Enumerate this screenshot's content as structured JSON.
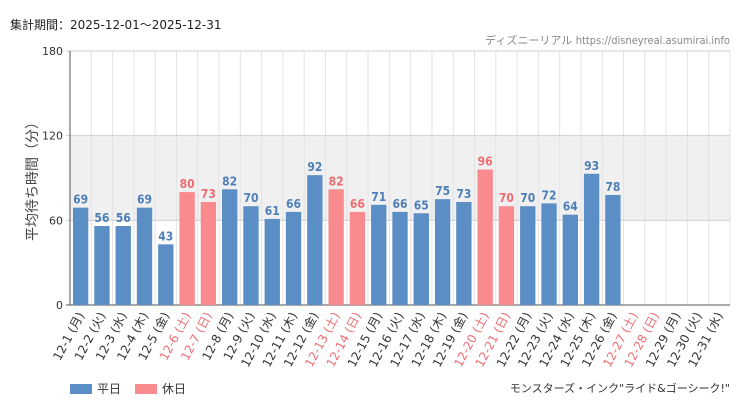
{
  "header": {
    "period_label": "集計期間：2025-12-01～2025-12-31",
    "source_name": "ディズニーリアル",
    "source_url": "https://disneyreal.asumirai.info"
  },
  "legend": {
    "weekday_label": "平日",
    "holiday_label": "休日"
  },
  "attraction": "モンスターズ・インク\"ライド&ゴーシーク!\"",
  "colors": {
    "weekday": "#5b8ec4",
    "holiday": "#f98a8e",
    "holiday_text": "#ee6d72",
    "weekday_label": "#4e7fb8",
    "band": "#f0f0f0"
  },
  "chart_data": {
    "type": "bar",
    "title": "",
    "ylabel": "平均待ち時間（分）",
    "xlabel": "",
    "ylim": [
      0,
      180
    ],
    "yticks": [
      0,
      60,
      120,
      180
    ],
    "categories": [
      {
        "label": "12-1 (月)",
        "value": 69,
        "holiday": false
      },
      {
        "label": "12-2 (火)",
        "value": 56,
        "holiday": false
      },
      {
        "label": "12-3 (水)",
        "value": 56,
        "holiday": false
      },
      {
        "label": "12-4 (木)",
        "value": 69,
        "holiday": false
      },
      {
        "label": "12-5 (金)",
        "value": 43,
        "holiday": false
      },
      {
        "label": "12-6 (土)",
        "value": 80,
        "holiday": true
      },
      {
        "label": "12-7 (日)",
        "value": 73,
        "holiday": true
      },
      {
        "label": "12-8 (月)",
        "value": 82,
        "holiday": false
      },
      {
        "label": "12-9 (火)",
        "value": 70,
        "holiday": false
      },
      {
        "label": "12-10 (水)",
        "value": 61,
        "holiday": false
      },
      {
        "label": "12-11 (木)",
        "value": 66,
        "holiday": false
      },
      {
        "label": "12-12 (金)",
        "value": 92,
        "holiday": false
      },
      {
        "label": "12-13 (土)",
        "value": 82,
        "holiday": true
      },
      {
        "label": "12-14 (日)",
        "value": 66,
        "holiday": true
      },
      {
        "label": "12-15 (月)",
        "value": 71,
        "holiday": false
      },
      {
        "label": "12-16 (火)",
        "value": 66,
        "holiday": false
      },
      {
        "label": "12-17 (水)",
        "value": 65,
        "holiday": false
      },
      {
        "label": "12-18 (木)",
        "value": 75,
        "holiday": false
      },
      {
        "label": "12-19 (金)",
        "value": 73,
        "holiday": false
      },
      {
        "label": "12-20 (土)",
        "value": 96,
        "holiday": true
      },
      {
        "label": "12-21 (日)",
        "value": 70,
        "holiday": true
      },
      {
        "label": "12-22 (月)",
        "value": 70,
        "holiday": false
      },
      {
        "label": "12-23 (火)",
        "value": 72,
        "holiday": false
      },
      {
        "label": "12-24 (水)",
        "value": 64,
        "holiday": false
      },
      {
        "label": "12-25 (木)",
        "value": 93,
        "holiday": false
      },
      {
        "label": "12-26 (金)",
        "value": 78,
        "holiday": false
      },
      {
        "label": "12-27 (土)",
        "value": null,
        "holiday": true
      },
      {
        "label": "12-28 (日)",
        "value": null,
        "holiday": true
      },
      {
        "label": "12-29 (月)",
        "value": null,
        "holiday": false
      },
      {
        "label": "12-30 (火)",
        "value": null,
        "holiday": false
      },
      {
        "label": "12-31 (水)",
        "value": null,
        "holiday": false
      }
    ],
    "bands": [
      [
        60,
        120
      ]
    ]
  }
}
